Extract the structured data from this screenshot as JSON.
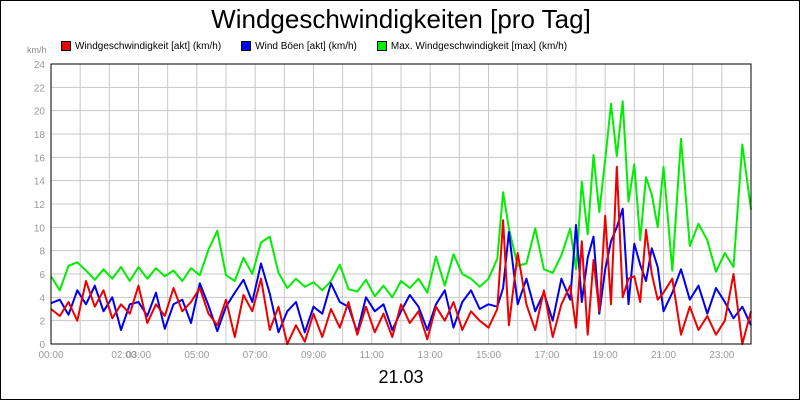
{
  "title": "Windgeschwindigkeiten [pro Tag]",
  "unit_label": "km/h",
  "date_label": "21.03",
  "chart_data": {
    "type": "line",
    "title": "Windgeschwindigkeiten [pro Tag]",
    "ylim": [
      0,
      24
    ],
    "y_ticks": [
      0,
      2,
      4,
      6,
      8,
      10,
      12,
      14,
      16,
      18,
      20,
      22,
      24
    ],
    "x_range_hours": [
      0,
      24
    ],
    "x_tick_labels": [
      {
        "hour": 0,
        "label": "00:00"
      },
      {
        "hour": 2.5,
        "label": "02:00"
      },
      {
        "hour": 3.0,
        "label": "03:00"
      },
      {
        "hour": 5.0,
        "label": "05:00"
      },
      {
        "hour": 7.0,
        "label": "07:00"
      },
      {
        "hour": 9.0,
        "label": "09:00"
      },
      {
        "hour": 11.0,
        "label": "11:00"
      },
      {
        "hour": 13.0,
        "label": "13:00"
      },
      {
        "hour": 15.0,
        "label": "15:00"
      },
      {
        "hour": 17.0,
        "label": "17:00"
      },
      {
        "hour": 19.0,
        "label": "19:00"
      },
      {
        "hour": 21.0,
        "label": "21:00"
      },
      {
        "hour": 23.0,
        "label": "23:00"
      }
    ],
    "grid": true,
    "legend_position": "top",
    "series": [
      {
        "name": "Max. Windgeschwindigkeit [max] (km/h)",
        "color": "#00ee00",
        "x": [
          0,
          0.3,
          0.6,
          0.9,
          1.2,
          1.5,
          1.8,
          2.1,
          2.4,
          2.7,
          3.0,
          3.3,
          3.6,
          3.9,
          4.2,
          4.5,
          4.8,
          5.1,
          5.4,
          5.7,
          6.0,
          6.3,
          6.6,
          6.9,
          7.2,
          7.5,
          7.8,
          8.1,
          8.4,
          8.7,
          9.0,
          9.3,
          9.6,
          9.9,
          10.2,
          10.5,
          10.8,
          11.1,
          11.4,
          11.7,
          12.0,
          12.3,
          12.6,
          12.9,
          13.2,
          13.5,
          13.8,
          14.1,
          14.4,
          14.7,
          15.0,
          15.3,
          15.5,
          15.7,
          16.0,
          16.3,
          16.6,
          16.9,
          17.2,
          17.5,
          17.8,
          18.0,
          18.2,
          18.4,
          18.6,
          18.8,
          19.0,
          19.2,
          19.4,
          19.6,
          19.8,
          20.0,
          20.2,
          20.4,
          20.6,
          20.8,
          21.0,
          21.3,
          21.6,
          21.9,
          22.2,
          22.5,
          22.8,
          23.1,
          23.4,
          23.7,
          24.0
        ],
        "values": [
          5.8,
          4.6,
          6.7,
          7.0,
          6.3,
          5.5,
          6.4,
          5.6,
          6.6,
          5.4,
          6.6,
          5.6,
          6.5,
          5.8,
          6.3,
          5.4,
          6.5,
          5.9,
          8.1,
          9.7,
          5.9,
          5.4,
          7.4,
          6.0,
          8.7,
          9.2,
          6.1,
          4.8,
          5.6,
          4.9,
          5.3,
          4.6,
          5.4,
          6.8,
          4.7,
          4.5,
          5.5,
          4.1,
          5.0,
          4.0,
          5.4,
          4.8,
          5.6,
          4.4,
          7.5,
          5.0,
          7.7,
          6.0,
          5.6,
          4.9,
          5.6,
          7.3,
          13.0,
          9.9,
          6.7,
          6.9,
          9.9,
          6.4,
          6.1,
          7.6,
          9.9,
          6.4,
          13.9,
          9.4,
          16.2,
          11.3,
          15.8,
          20.6,
          16.1,
          20.8,
          12.2,
          15.4,
          8.9,
          14.3,
          12.8,
          10.0,
          15.2,
          6.3,
          17.6,
          8.4,
          10.3,
          8.9,
          6.2,
          7.8,
          6.6,
          17.1,
          11.5
        ]
      },
      {
        "name": "Wind Böen [akt] (km/h)",
        "color": "#0000ee",
        "x": [
          0,
          0.3,
          0.6,
          0.9,
          1.2,
          1.5,
          1.8,
          2.1,
          2.4,
          2.7,
          3.0,
          3.3,
          3.6,
          3.9,
          4.2,
          4.5,
          4.8,
          5.1,
          5.4,
          5.7,
          6.0,
          6.3,
          6.6,
          6.9,
          7.2,
          7.5,
          7.8,
          8.1,
          8.4,
          8.7,
          9.0,
          9.3,
          9.6,
          9.9,
          10.2,
          10.5,
          10.8,
          11.1,
          11.4,
          11.7,
          12.0,
          12.3,
          12.6,
          12.9,
          13.2,
          13.5,
          13.8,
          14.1,
          14.4,
          14.7,
          15.0,
          15.3,
          15.5,
          15.7,
          16.0,
          16.3,
          16.6,
          16.9,
          17.2,
          17.5,
          17.8,
          18.0,
          18.2,
          18.4,
          18.6,
          18.8,
          19.0,
          19.2,
          19.4,
          19.6,
          19.8,
          20.0,
          20.2,
          20.4,
          20.6,
          20.8,
          21.0,
          21.3,
          21.6,
          21.9,
          22.2,
          22.5,
          22.8,
          23.1,
          23.4,
          23.7,
          24.0
        ],
        "values": [
          3.5,
          3.8,
          2.5,
          4.6,
          3.4,
          5.0,
          2.8,
          4.0,
          1.2,
          3.4,
          3.6,
          2.4,
          4.4,
          1.3,
          3.4,
          3.8,
          1.8,
          5.2,
          3.3,
          1.1,
          3.2,
          4.4,
          5.5,
          3.6,
          6.9,
          4.3,
          1.0,
          2.8,
          3.6,
          1.0,
          3.2,
          2.6,
          5.2,
          3.6,
          3.2,
          1.0,
          4.0,
          2.8,
          3.4,
          1.2,
          2.8,
          4.2,
          3.2,
          1.2,
          3.4,
          4.6,
          1.4,
          3.6,
          4.6,
          3.0,
          3.4,
          3.2,
          4.8,
          9.6,
          3.4,
          5.6,
          2.8,
          4.4,
          2.0,
          5.6,
          3.8,
          10.2,
          3.6,
          7.4,
          9.2,
          2.6,
          6.4,
          8.8,
          10.0,
          11.6,
          3.4,
          8.6,
          6.8,
          5.4,
          8.2,
          6.6,
          2.8,
          4.4,
          6.4,
          3.8,
          5.0,
          2.6,
          4.8,
          3.6,
          2.2,
          3.2,
          1.6
        ]
      },
      {
        "name": "Windgeschwindigkeit [akt] (km/h)",
        "color": "#ee0000",
        "x": [
          0,
          0.3,
          0.6,
          0.9,
          1.2,
          1.5,
          1.8,
          2.1,
          2.4,
          2.7,
          3.0,
          3.3,
          3.6,
          3.9,
          4.2,
          4.5,
          4.8,
          5.1,
          5.4,
          5.7,
          6.0,
          6.3,
          6.6,
          6.9,
          7.2,
          7.5,
          7.8,
          8.1,
          8.4,
          8.7,
          9.0,
          9.3,
          9.6,
          9.9,
          10.2,
          10.5,
          10.8,
          11.1,
          11.4,
          11.7,
          12.0,
          12.3,
          12.6,
          12.9,
          13.2,
          13.5,
          13.8,
          14.1,
          14.4,
          14.7,
          15.0,
          15.3,
          15.5,
          15.7,
          16.0,
          16.3,
          16.6,
          16.9,
          17.2,
          17.5,
          17.8,
          18.0,
          18.2,
          18.4,
          18.6,
          18.8,
          19.0,
          19.2,
          19.4,
          19.6,
          19.8,
          20.0,
          20.2,
          20.4,
          20.6,
          20.8,
          21.0,
          21.3,
          21.6,
          21.9,
          22.2,
          22.5,
          22.8,
          23.1,
          23.4,
          23.7,
          24.0
        ],
        "values": [
          3.0,
          2.4,
          3.6,
          2.0,
          5.4,
          3.2,
          4.6,
          2.2,
          3.4,
          2.6,
          5.0,
          1.8,
          3.4,
          2.4,
          4.8,
          2.8,
          3.6,
          4.8,
          2.6,
          1.6,
          3.8,
          0.6,
          4.2,
          2.8,
          5.6,
          1.2,
          3.2,
          0.0,
          1.6,
          0.2,
          2.6,
          0.6,
          3.0,
          1.4,
          3.6,
          0.8,
          3.2,
          1.0,
          2.6,
          0.6,
          3.4,
          1.8,
          2.8,
          0.4,
          3.2,
          2.0,
          3.6,
          1.2,
          2.8,
          2.0,
          1.4,
          3.0,
          10.6,
          1.6,
          7.8,
          3.4,
          1.2,
          4.6,
          0.6,
          3.4,
          5.0,
          1.4,
          8.8,
          0.8,
          7.2,
          2.8,
          11.0,
          3.4,
          15.2,
          4.0,
          5.6,
          5.8,
          3.6,
          9.8,
          6.0,
          3.8,
          4.4,
          5.6,
          0.8,
          3.2,
          1.2,
          2.4,
          0.8,
          2.0,
          6.0,
          0.0,
          2.8
        ]
      }
    ],
    "legend_entries": [
      {
        "label": "Windgeschwindigkeit [akt] (km/h)",
        "color": "#ee0000"
      },
      {
        "label": "Wind Böen [akt] (km/h)",
        "color": "#0000ee"
      },
      {
        "label": "Max. Windgeschwindigkeit [max] (km/h)",
        "color": "#00ee00"
      }
    ]
  }
}
